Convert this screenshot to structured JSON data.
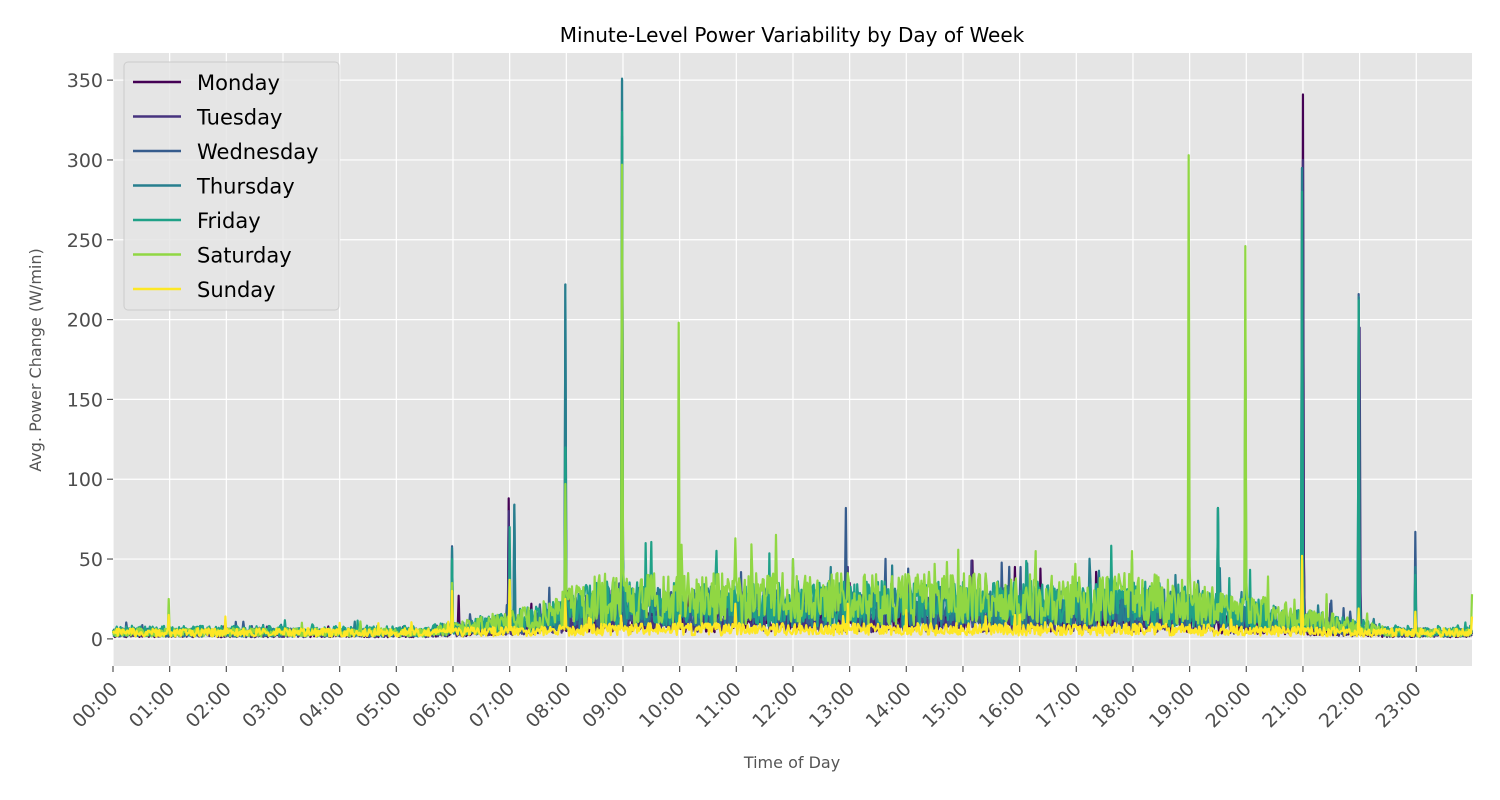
{
  "chart_data": {
    "type": "line",
    "title": "Minute-Level Power Variability by Day of Week",
    "xlabel": "Time of Day",
    "ylabel": "Avg. Power Change (W/min)",
    "xlim_minutes": [
      0,
      1439
    ],
    "ylim": [
      -17,
      367
    ],
    "x_ticks": [
      "00:00",
      "01:00",
      "02:00",
      "03:00",
      "04:00",
      "05:00",
      "06:00",
      "07:00",
      "08:00",
      "09:00",
      "10:00",
      "11:00",
      "12:00",
      "13:00",
      "14:00",
      "15:00",
      "16:00",
      "17:00",
      "18:00",
      "19:00",
      "20:00",
      "21:00",
      "22:00",
      "23:00"
    ],
    "y_ticks": [
      0,
      50,
      100,
      150,
      200,
      250,
      300,
      350
    ],
    "grid": true,
    "legend_position": "upper-left",
    "x_resolution": "1 minute (00:00–23:59)",
    "series": [
      {
        "name": "Monday",
        "color": "#440154",
        "night_level": 3,
        "day_level": 12,
        "peaks": [
          [
            "06:06",
            27
          ],
          [
            "06:59",
            88
          ],
          [
            "07:23",
            22
          ],
          [
            "08:02",
            30
          ],
          [
            "12:00",
            45
          ],
          [
            "13:00",
            35
          ],
          [
            "15:10",
            49
          ],
          [
            "15:55",
            45
          ],
          [
            "16:22",
            44
          ],
          [
            "17:21",
            42
          ],
          [
            "21:00",
            341
          ],
          [
            "21:59",
            150
          ],
          [
            "22:59",
            12
          ]
        ]
      },
      {
        "name": "Tuesday",
        "color": "#46337e",
        "night_level": 3,
        "day_level": 12,
        "peaks": [
          [
            "06:59",
            80
          ],
          [
            "07:54",
            22
          ],
          [
            "08:59",
            315
          ],
          [
            "12:58",
            45
          ],
          [
            "15:09",
            49
          ],
          [
            "21:00",
            300
          ],
          [
            "21:29",
            22
          ],
          [
            "22:00",
            195
          ],
          [
            "22:59",
            30
          ]
        ]
      },
      {
        "name": "Wednesday",
        "color": "#365c8d",
        "night_level": 4,
        "day_level": 18,
        "peaks": [
          [
            "05:59",
            58
          ],
          [
            "07:05",
            84
          ],
          [
            "07:59",
            222
          ],
          [
            "08:59",
            350
          ],
          [
            "11:16",
            50
          ],
          [
            "12:56",
            82
          ],
          [
            "14:02",
            44
          ],
          [
            "15:24",
            40
          ],
          [
            "16:01",
            45
          ],
          [
            "19:30",
            82
          ],
          [
            "20:59",
            295
          ],
          [
            "21:30",
            24
          ],
          [
            "21:59",
            216
          ],
          [
            "22:59",
            67
          ]
        ]
      },
      {
        "name": "Thursday",
        "color": "#277f8e",
        "night_level": 4,
        "day_level": 20,
        "peaks": [
          [
            "05:59",
            57
          ],
          [
            "07:05",
            84
          ],
          [
            "07:59",
            222
          ],
          [
            "08:59",
            351
          ],
          [
            "12:40",
            45
          ],
          [
            "13:45",
            46
          ],
          [
            "18:45",
            40
          ],
          [
            "19:30",
            82
          ],
          [
            "20:59",
            295
          ],
          [
            "21:59",
            214
          ],
          [
            "22:59",
            45
          ]
        ]
      },
      {
        "name": "Friday",
        "color": "#1fa187",
        "night_level": 5,
        "day_level": 22,
        "peaks": [
          [
            "05:59",
            50
          ],
          [
            "07:00",
            70
          ],
          [
            "07:59",
            120
          ],
          [
            "08:59",
            330
          ],
          [
            "09:24",
            60
          ],
          [
            "09:59",
            50
          ],
          [
            "12:00",
            50
          ],
          [
            "17:59",
            50
          ],
          [
            "19:30",
            82
          ],
          [
            "19:59",
            200
          ],
          [
            "20:59",
            280
          ],
          [
            "21:59",
            212
          ],
          [
            "22:59",
            40
          ]
        ]
      },
      {
        "name": "Saturday",
        "color": "#90d743",
        "night_level": 4,
        "day_level": 25,
        "peaks": [
          [
            "00:59",
            25
          ],
          [
            "05:59",
            35
          ],
          [
            "07:00",
            36
          ],
          [
            "07:59",
            97
          ],
          [
            "08:59",
            297
          ],
          [
            "09:59",
            198
          ],
          [
            "10:02",
            59
          ],
          [
            "10:59",
            63
          ],
          [
            "12:00",
            50
          ],
          [
            "14:30",
            47
          ],
          [
            "16:17",
            55
          ],
          [
            "16:59",
            47
          ],
          [
            "17:59",
            55
          ],
          [
            "18:59",
            303
          ],
          [
            "19:59",
            246
          ],
          [
            "20:59",
            50
          ],
          [
            "23:59",
            28
          ]
        ]
      },
      {
        "name": "Sunday",
        "color": "#fde725",
        "night_level": 4,
        "day_level": 6,
        "peaks": [
          [
            "00:59",
            15
          ],
          [
            "01:59",
            14
          ],
          [
            "05:59",
            30
          ],
          [
            "07:00",
            37
          ],
          [
            "07:59",
            25
          ],
          [
            "10:59",
            22
          ],
          [
            "12:58",
            22
          ],
          [
            "14:00",
            18
          ],
          [
            "16:00",
            15
          ],
          [
            "20:59",
            52
          ],
          [
            "21:59",
            19
          ],
          [
            "22:59",
            17
          ],
          [
            "23:59",
            14
          ]
        ]
      }
    ]
  }
}
